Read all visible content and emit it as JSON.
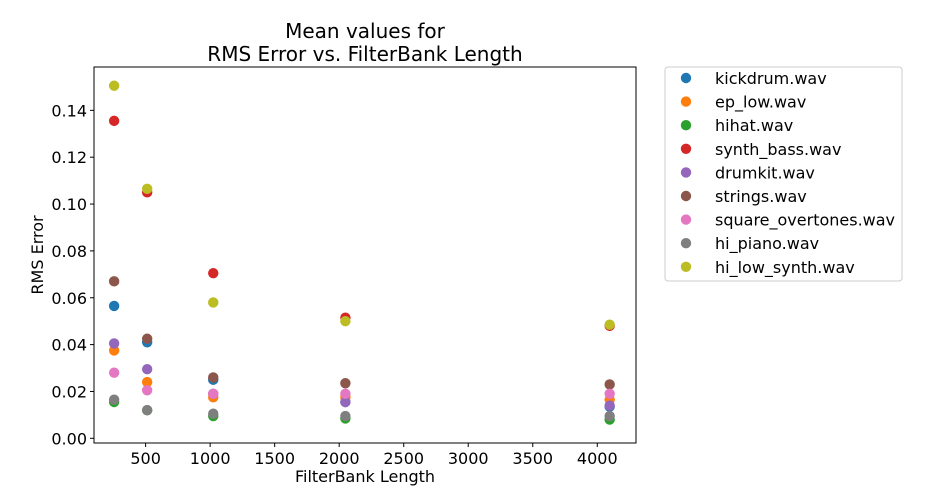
{
  "chart_data": {
    "type": "scatter",
    "title_line1": "Mean values for",
    "title_line2": "RMS Error vs. FilterBank Length",
    "xlabel": "FilterBank Length",
    "ylabel": "RMS Error",
    "xlim": [
      100,
      4300
    ],
    "ylim": [
      -0.002,
      0.1585
    ],
    "xticks": [
      500,
      1000,
      1500,
      2000,
      2500,
      3000,
      3500,
      4000
    ],
    "xtick_labels": [
      "500",
      "1000",
      "1500",
      "2000",
      "2500",
      "3000",
      "3500",
      "4000"
    ],
    "yticks": [
      0.0,
      0.02,
      0.04,
      0.06,
      0.08,
      0.1,
      0.12,
      0.14
    ],
    "ytick_labels": [
      "0.00",
      "0.02",
      "0.04",
      "0.06",
      "0.08",
      "0.10",
      "0.12",
      "0.14"
    ],
    "legend_position": "outside-right-top",
    "x": [
      256,
      512,
      1024,
      2048,
      4096
    ],
    "series": [
      {
        "name": "kickdrum.wav",
        "color": "#1f77b4",
        "values": [
          0.0565,
          0.041,
          0.025,
          0.0155,
          0.0135
        ]
      },
      {
        "name": "ep_low.wav",
        "color": "#ff7f0e",
        "values": [
          0.0375,
          0.024,
          0.0175,
          0.0175,
          0.0165
        ]
      },
      {
        "name": "hihat.wav",
        "color": "#2ca02c",
        "values": [
          0.0155,
          0.012,
          0.0095,
          0.0085,
          0.008
        ]
      },
      {
        "name": "synth_bass.wav",
        "color": "#d62728",
        "values": [
          0.1355,
          0.105,
          0.0705,
          0.0515,
          0.048
        ]
      },
      {
        "name": "drumkit.wav",
        "color": "#9467bd",
        "values": [
          0.0405,
          0.0295,
          0.019,
          0.0155,
          0.014
        ]
      },
      {
        "name": "strings.wav",
        "color": "#8c564b",
        "values": [
          0.067,
          0.0425,
          0.026,
          0.0235,
          0.023
        ]
      },
      {
        "name": "square_overtones.wav",
        "color": "#e377c2",
        "values": [
          0.028,
          0.0205,
          0.019,
          0.019,
          0.019
        ]
      },
      {
        "name": "hi_piano.wav",
        "color": "#7f7f7f",
        "values": [
          0.0165,
          0.012,
          0.0105,
          0.0095,
          0.0095
        ]
      },
      {
        "name": "hi_low_synth.wav",
        "color": "#bcbd22",
        "values": [
          0.1505,
          0.1065,
          0.058,
          0.05,
          0.0485
        ]
      }
    ]
  }
}
